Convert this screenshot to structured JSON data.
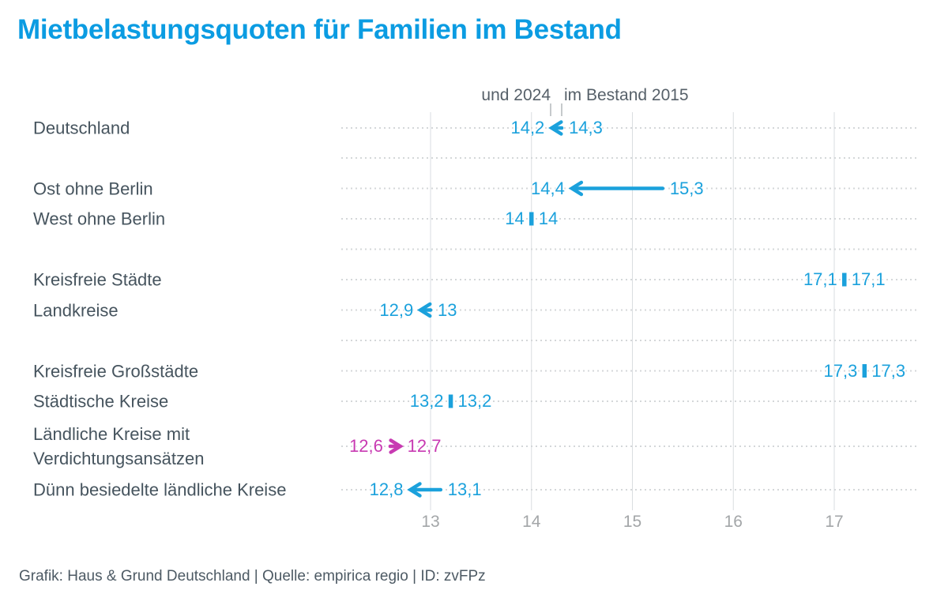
{
  "title": "Mietbelastungsquoten für Familien im Bestand",
  "annotation": {
    "left": "und 2024",
    "right": "im Bestand 2015"
  },
  "footer": "Grafik: Haus & Grund Deutschland | Quelle: empirica regio | ID: zvFPz",
  "colors": {
    "title": "#0b9ce2",
    "blue": "#1ba1dc",
    "pink": "#c83ab2",
    "category_label": "#46545e",
    "annotation_text": "#566069",
    "axis_tick": "#a3a6a8",
    "footer_text": "#4d5a64",
    "gridline": "#dadde0",
    "dotted_line": "#d4d7d9",
    "leader_line": "#c6cacc"
  },
  "chart_data": {
    "type": "arrow",
    "title": "Mietbelastungsquoten für Familien im Bestand",
    "annotation_2024": "und 2024",
    "annotation_2015": "im Bestand 2015",
    "x_range": [
      12.1,
      17.85
    ],
    "grid": "vertical-solid-horizontal-dotted",
    "x_ticks": [
      {
        "value": 13,
        "label": "13"
      },
      {
        "value": 14,
        "label": "14"
      },
      {
        "value": 15,
        "label": "15"
      },
      {
        "value": 16,
        "label": "16"
      },
      {
        "value": 17,
        "label": "17"
      }
    ],
    "rows": [
      {
        "label": "Deutschland",
        "value_2015": 14.3,
        "value_2024": 14.2,
        "label_2015": "14,3",
        "label_2024": "14,2",
        "highlight": false
      },
      {
        "blank": true,
        "label": ""
      },
      {
        "label": "Ost ohne Berlin",
        "value_2015": 15.3,
        "value_2024": 14.4,
        "label_2015": "15,3",
        "label_2024": "14,4",
        "highlight": false
      },
      {
        "label": "West ohne Berlin",
        "value_2015": 14,
        "value_2024": 14,
        "label_2015": "14",
        "label_2024": "14",
        "highlight": false
      },
      {
        "blank": true,
        "label": ""
      },
      {
        "label": "Kreisfreie Städte",
        "value_2015": 17.1,
        "value_2024": 17.1,
        "label_2015": "17,1",
        "label_2024": "17,1",
        "highlight": false
      },
      {
        "label": "Landkreise",
        "value_2015": 13,
        "value_2024": 12.9,
        "label_2015": "13",
        "label_2024": "12,9",
        "highlight": false
      },
      {
        "blank": true,
        "label": ""
      },
      {
        "label": "Kreisfreie Großstädte",
        "value_2015": 17.3,
        "value_2024": 17.3,
        "label_2015": "17,3",
        "label_2024": "17,3",
        "highlight": false
      },
      {
        "label": "Städtische Kreise",
        "value_2015": 13.2,
        "value_2024": 13.2,
        "label_2015": "13,2",
        "label_2024": "13,2",
        "highlight": false
      },
      {
        "label": "Ländliche Kreise mit\nVerdichtungsansätzen",
        "value_2015": 12.6,
        "value_2024": 12.7,
        "label_2015": "12,6",
        "label_2024": "12,7",
        "highlight": true
      },
      {
        "label": "Dünn besiedelte ländliche Kreise",
        "value_2015": 13.1,
        "value_2024": 12.8,
        "label_2015": "13,1",
        "label_2024": "12,8",
        "highlight": false
      }
    ]
  }
}
